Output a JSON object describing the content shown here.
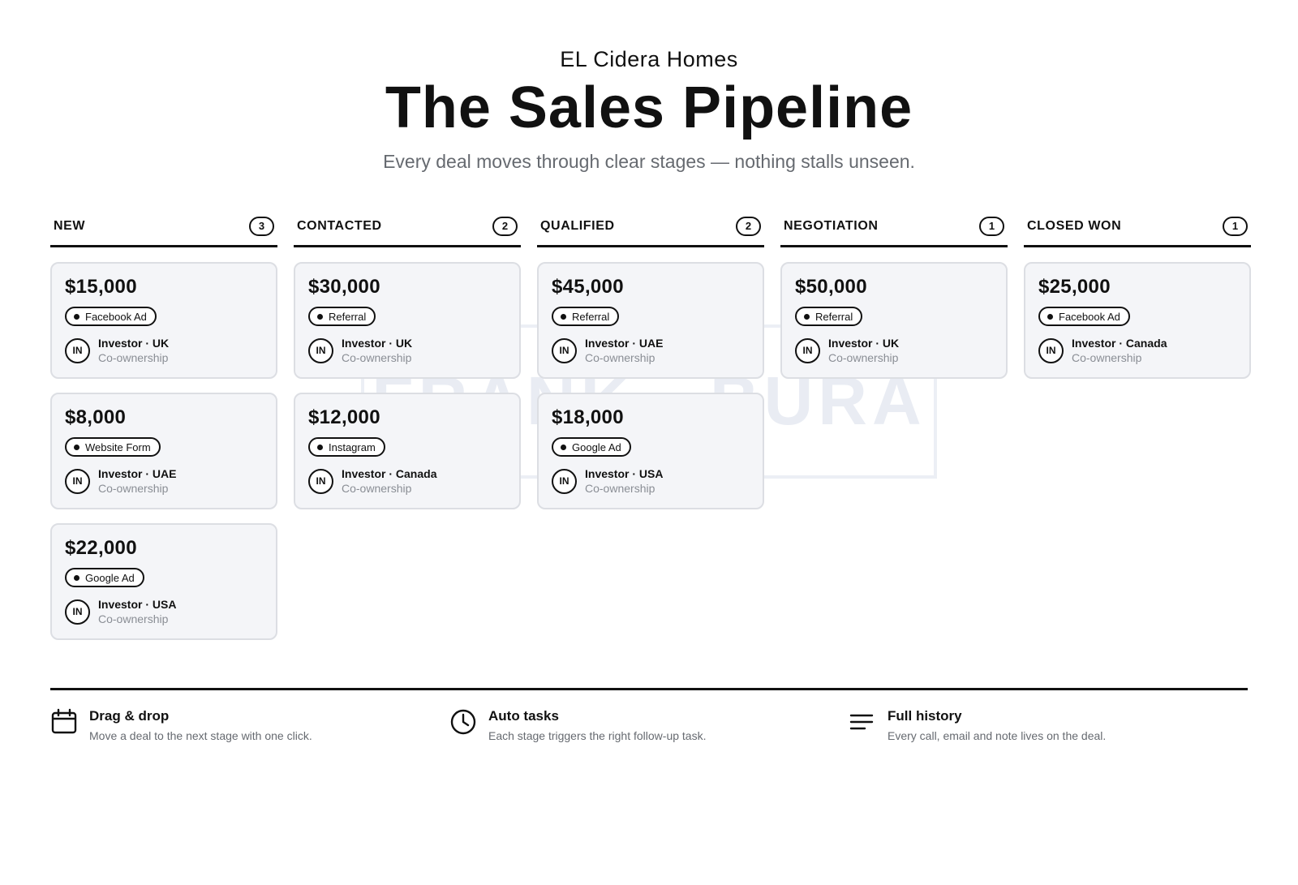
{
  "header": {
    "brand": "EL Cidera Homes",
    "title": "The Sales Pipeline",
    "subtitle": "Every deal moves through clear stages — nothing stalls unseen."
  },
  "columns": [
    {
      "title": "NEW",
      "count": "3",
      "cards": [
        {
          "amount": "$15,000",
          "source": "Facebook Ad",
          "initials": "IN",
          "person": "Investor · UK",
          "type": "Co-ownership"
        },
        {
          "amount": "$8,000",
          "source": "Website Form",
          "initials": "IN",
          "person": "Investor · UAE",
          "type": "Co-ownership"
        },
        {
          "amount": "$22,000",
          "source": "Google Ad",
          "initials": "IN",
          "person": "Investor · USA",
          "type": "Co-ownership"
        }
      ]
    },
    {
      "title": "CONTACTED",
      "count": "2",
      "cards": [
        {
          "amount": "$30,000",
          "source": "Referral",
          "initials": "IN",
          "person": "Investor · UK",
          "type": "Co-ownership"
        },
        {
          "amount": "$12,000",
          "source": "Instagram",
          "initials": "IN",
          "person": "Investor · Canada",
          "type": "Co-ownership"
        }
      ]
    },
    {
      "title": "QUALIFIED",
      "count": "2",
      "cards": [
        {
          "amount": "$45,000",
          "source": "Referral",
          "initials": "IN",
          "person": "Investor · UAE",
          "type": "Co-ownership"
        },
        {
          "amount": "$18,000",
          "source": "Google Ad",
          "initials": "IN",
          "person": "Investor · USA",
          "type": "Co-ownership"
        }
      ]
    },
    {
      "title": "NEGOTIATION",
      "count": "1",
      "cards": [
        {
          "amount": "$50,000",
          "source": "Referral",
          "initials": "IN",
          "person": "Investor · UK",
          "type": "Co-ownership"
        }
      ]
    },
    {
      "title": "CLOSED WON",
      "count": "1",
      "cards": [
        {
          "amount": "$25,000",
          "source": "Facebook Ad",
          "initials": "IN",
          "person": "Investor · Canada",
          "type": "Co-ownership"
        }
      ]
    }
  ],
  "features": [
    {
      "icon": "calendar-icon",
      "title": "Drag & drop",
      "desc": "Move a deal to the next stage with one click."
    },
    {
      "icon": "clock-icon",
      "title": "Auto tasks",
      "desc": "Each stage triggers the right follow-up task."
    },
    {
      "icon": "list-lines-icon",
      "title": "Full history",
      "desc": "Every call, email and note lives on the deal."
    }
  ],
  "colors": {
    "text": "#111111",
    "muted": "#666a70",
    "card_bg": "#f4f5f8",
    "card_border": "#dcdee3"
  }
}
